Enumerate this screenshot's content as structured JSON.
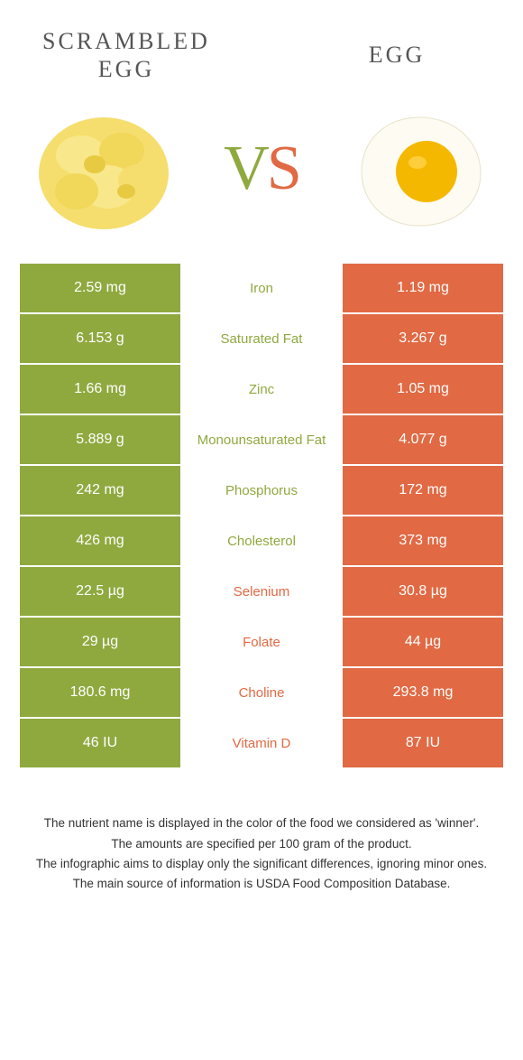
{
  "header": {
    "left_title": "SCRAMBLED EGG",
    "right_title": "EGG",
    "vs_v": "V",
    "vs_s": "S"
  },
  "colors": {
    "left": "#8fa93f",
    "right": "#e16943",
    "text_white": "#ffffff",
    "text_dark": "#333333"
  },
  "images": {
    "left_name": "scrambled-egg",
    "right_name": "fried-egg"
  },
  "rows": [
    {
      "left": "2.59 mg",
      "label": "Iron",
      "right": "1.19 mg",
      "winner": "left"
    },
    {
      "left": "6.153 g",
      "label": "Saturated Fat",
      "right": "3.267 g",
      "winner": "left"
    },
    {
      "left": "1.66 mg",
      "label": "Zinc",
      "right": "1.05 mg",
      "winner": "left"
    },
    {
      "left": "5.889 g",
      "label": "Monounsaturated Fat",
      "right": "4.077 g",
      "winner": "left"
    },
    {
      "left": "242 mg",
      "label": "Phosphorus",
      "right": "172 mg",
      "winner": "left"
    },
    {
      "left": "426 mg",
      "label": "Cholesterol",
      "right": "373 mg",
      "winner": "left"
    },
    {
      "left": "22.5 µg",
      "label": "Selenium",
      "right": "30.8 µg",
      "winner": "right"
    },
    {
      "left": "29 µg",
      "label": "Folate",
      "right": "44 µg",
      "winner": "right"
    },
    {
      "left": "180.6 mg",
      "label": "Choline",
      "right": "293.8 mg",
      "winner": "right"
    },
    {
      "left": "46 IU",
      "label": "Vitamin D",
      "right": "87 IU",
      "winner": "right"
    }
  ],
  "footer": {
    "line1": "The nutrient name is displayed in the color of the food we considered as 'winner'.",
    "line2": "The amounts are specified per 100 gram of the product.",
    "line3": "The infographic aims to display only the significant differences, ignoring minor ones.",
    "line4": "The main source of information is USDA Food Composition Database."
  }
}
